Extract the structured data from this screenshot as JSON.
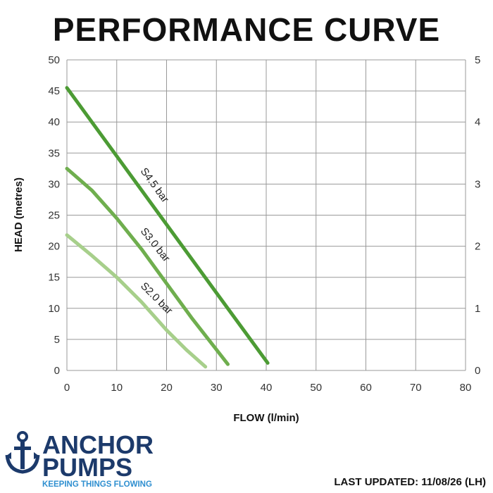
{
  "chart_data": {
    "type": "line",
    "title": "PERFORMANCE CURVE",
    "xlabel": "FLOW (l/min)",
    "ylabel": "HEAD (metres)",
    "xlim": [
      0,
      80
    ],
    "ylim": [
      0,
      50
    ],
    "y2lim": [
      0,
      5
    ],
    "xticks": [
      0,
      10,
      20,
      30,
      40,
      50,
      60,
      70,
      80
    ],
    "yticks": [
      0,
      5,
      10,
      15,
      20,
      25,
      30,
      35,
      40,
      45,
      50
    ],
    "y2ticks": [
      0,
      1,
      2,
      3,
      4,
      5
    ],
    "grid": true,
    "series": [
      {
        "name": "S4.5 bar",
        "color": "#4c9b34",
        "x": [
          0,
          10,
          20,
          30,
          40.3
        ],
        "y": [
          45.5,
          34.5,
          23.5,
          12.5,
          1.2
        ]
      },
      {
        "name": "S3.0 bar",
        "color": "#6fae4e",
        "x": [
          0,
          5,
          10,
          15,
          20,
          25,
          32.3
        ],
        "y": [
          32.5,
          29,
          24.5,
          19.5,
          14,
          8.5,
          1
        ]
      },
      {
        "name": "S2.0 bar",
        "color": "#a7cf8b",
        "x": [
          0,
          5,
          10,
          15,
          20,
          24,
          27.8
        ],
        "y": [
          21.8,
          18.5,
          15,
          11,
          6.5,
          3.3,
          0.6
        ]
      }
    ]
  },
  "brand": {
    "line1": "ANCHOR",
    "line2": "PUMPS",
    "tagline": "KEEPING THINGS FLOWING",
    "navy": "#1c3a6b",
    "accent": "#2f8fd0",
    "icon": "anchor-icon"
  },
  "footer": {
    "updated": "LAST UPDATED: 11/08/26 (LH)"
  }
}
